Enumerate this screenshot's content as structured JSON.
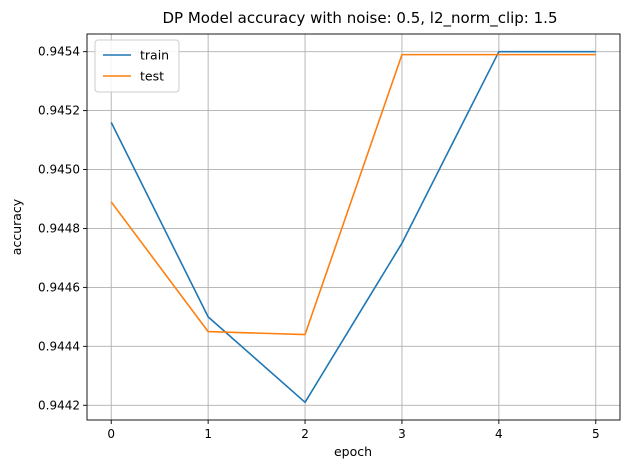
{
  "chart_data": {
    "type": "line",
    "title": "DP Model accuracy with noise: 0.5, l2_norm_clip: 1.5",
    "xlabel": "epoch",
    "ylabel": "accuracy",
    "x": [
      0,
      1,
      2,
      3,
      4,
      5
    ],
    "xticks": [
      "0",
      "1",
      "2",
      "3",
      "4",
      "5"
    ],
    "yticks": [
      "0.9442",
      "0.9444",
      "0.9446",
      "0.9448",
      "0.9450",
      "0.9452",
      "0.9454"
    ],
    "ytick_values": [
      0.9442,
      0.9444,
      0.9446,
      0.9448,
      0.945,
      0.9452,
      0.9454
    ],
    "xlim": [
      -0.25,
      5.25
    ],
    "ylim": [
      0.94415,
      0.94546
    ],
    "grid": true,
    "legend_position": "upper-left",
    "series": [
      {
        "name": "train",
        "color": "#1f77b4",
        "values": [
          0.94516,
          0.9445,
          0.94421,
          0.94475,
          0.9454,
          0.9454
        ]
      },
      {
        "name": "test",
        "color": "#ff7f0e",
        "values": [
          0.94489,
          0.94445,
          0.94444,
          0.94539,
          0.94539,
          0.94539
        ]
      }
    ]
  }
}
